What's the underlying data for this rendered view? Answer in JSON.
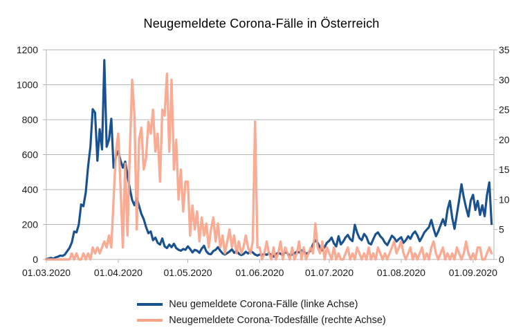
{
  "title": "Neugemeldete Corona-Fälle in Österreich",
  "legend": {
    "items": [
      {
        "label": "Neu gemeldete Corona-Fälle (linke Achse)",
        "color": "#1A528F"
      },
      {
        "label": "Neugemeldete Corona-Todesfälle (rechte Achse)",
        "color": "#F9A287"
      }
    ]
  },
  "chart_data": {
    "type": "line",
    "title": "Neugemeldete Corona-Fälle in Österreich",
    "grid": "horizontal-only",
    "legend_position": "bottom",
    "colors": {
      "grid": "#B5B5B5",
      "axis_text": "#1A1A1A"
    },
    "x_axis": {
      "start_date": "01.03.2020",
      "end_date": "09.09.2020",
      "total_days": 193,
      "tick_labels": [
        "01.03.2020",
        "01.04.2020",
        "01.05.2020",
        "01.06.2020",
        "01.07.2020",
        "01.08.2020",
        "01.09.2020"
      ],
      "tick_days": [
        0,
        31,
        61,
        92,
        122,
        153,
        184
      ]
    },
    "left_axis": {
      "min": 0,
      "max": 1200,
      "ticks": [
        0,
        200,
        400,
        600,
        800,
        1000,
        1200
      ]
    },
    "right_axis": {
      "min": 0,
      "max": 35,
      "ticks": [
        0,
        5,
        10,
        15,
        20,
        25,
        30,
        35
      ]
    },
    "series": [
      {
        "name": "Neu gemeldete Corona-Fälle (linke Achse)",
        "axis": "left",
        "color": "#1A528F",
        "values": [
          2,
          6,
          9,
          4,
          12,
          16,
          22,
          20,
          28,
          48,
          66,
          98,
          160,
          155,
          200,
          315,
          305,
          385,
          530,
          645,
          860,
          840,
          565,
          745,
          630,
          1141,
          645,
          685,
          805,
          525,
          590,
          620,
          565,
          525,
          560,
          480,
          405,
          340,
          310,
          350,
          305,
          260,
          230,
          185,
          150,
          160,
          110,
          125,
          95,
          85,
          120,
          75,
          65,
          85,
          70,
          90,
          65,
          55,
          50,
          60,
          55,
          75,
          60,
          40,
          55,
          50,
          38,
          62,
          78,
          46,
          32,
          30,
          48,
          55,
          70,
          50,
          34,
          28,
          36,
          45,
          58,
          38,
          50,
          33,
          25,
          30,
          44,
          34,
          48,
          40,
          28,
          22,
          28,
          24,
          32,
          26,
          36,
          24,
          16,
          30,
          38,
          32,
          26,
          42,
          34,
          22,
          28,
          35,
          45,
          40,
          52,
          46,
          33,
          38,
          52,
          88,
          110,
          95,
          68,
          52,
          72,
          96,
          107,
          125,
          92,
          75,
          133,
          86,
          102,
          126,
          140,
          116,
          105,
          198,
          154,
          122,
          110,
          146,
          130,
          94,
          86,
          117,
          145,
          155,
          133,
          119,
          96,
          82,
          108,
          136,
          124,
          103,
          117,
          127,
          95,
          110,
          133,
          118,
          146,
          160,
          137,
          104,
          128,
          155,
          170,
          185,
          226,
          175,
          133,
          160,
          196,
          230,
          195,
          287,
          335,
          238,
          175,
          258,
          340,
          430,
          355,
          295,
          246,
          338,
          370,
          283,
          335,
          255,
          310,
          247,
          368,
          441,
          203
        ]
      },
      {
        "name": "Neugemeldete Corona-Todesfälle (rechte Achse)",
        "axis": "right",
        "color": "#F9A287",
        "values": [
          0,
          0,
          0,
          0,
          0,
          0,
          0,
          0,
          0,
          0,
          0,
          1,
          0,
          1,
          0,
          0,
          1,
          0,
          1,
          0,
          2,
          1,
          2,
          1,
          2,
          3,
          2,
          4,
          2,
          10,
          18,
          21,
          12,
          2,
          16,
          4,
          18,
          30,
          24,
          5,
          20,
          22,
          15,
          17,
          23,
          21,
          25,
          18,
          21,
          13,
          25,
          24,
          31,
          18,
          30,
          15,
          20,
          10,
          15,
          8,
          13,
          13,
          4,
          9,
          5,
          8,
          3,
          7,
          4,
          6,
          2,
          5,
          7,
          3,
          6,
          2,
          4,
          1,
          3,
          5,
          2,
          4,
          1,
          3,
          1,
          2,
          4,
          2,
          1,
          3,
          23,
          2,
          2,
          0,
          1,
          3,
          1,
          0,
          2,
          0,
          1,
          3,
          0,
          2,
          1,
          0,
          2,
          0,
          1,
          3,
          0,
          2,
          0,
          1,
          2,
          1,
          6,
          2,
          1,
          3,
          0,
          2,
          1,
          0,
          2,
          0,
          1,
          0,
          0,
          1,
          2,
          0,
          1,
          0,
          2,
          1,
          0,
          1,
          0,
          2,
          0,
          1,
          0,
          2,
          1,
          0,
          1,
          0,
          1,
          2,
          3,
          1,
          2,
          3,
          1,
          0,
          1,
          2,
          0,
          1,
          0,
          1,
          2,
          0,
          1,
          0,
          2,
          3,
          1,
          0,
          1,
          2,
          0,
          1,
          0,
          1,
          0,
          2,
          1,
          0,
          1,
          3,
          1,
          0,
          1,
          0,
          2,
          2,
          0,
          0,
          1,
          2,
          1
        ]
      }
    ]
  }
}
